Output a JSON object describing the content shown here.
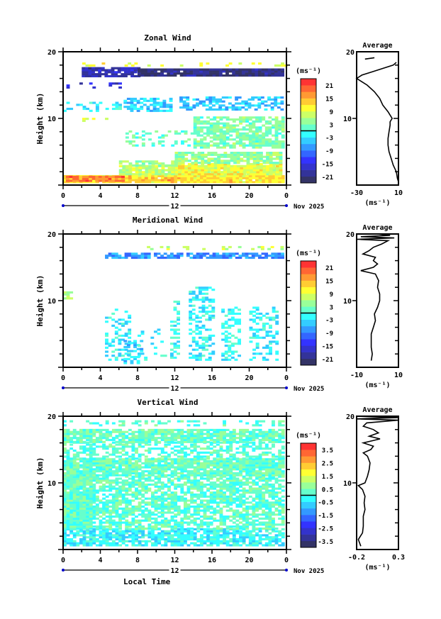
{
  "chart_data": [
    {
      "type": "heatmap",
      "title": "Zonal Wind",
      "ylabel": "Height (km)",
      "xlabel": "",
      "xlim": [
        0,
        24
      ],
      "ylim": [
        0,
        20
      ],
      "x_ticks": [
        "0",
        "4",
        "8",
        "12",
        "16",
        "20",
        "0"
      ],
      "y_ticks": [
        "20",
        "10"
      ],
      "date_label": "12",
      "month_label": "Nov 2025",
      "colorbar": {
        "unit": "(ms⁻¹)",
        "range": [
          -24,
          24
        ],
        "ticks": [
          "21",
          "15",
          "9",
          "3",
          "-3",
          "-9",
          "-15",
          "-21"
        ]
      },
      "patches": [
        [
          0,
          23.5,
          0.3,
          1.5,
          12,
          0.97
        ],
        [
          0.3,
          6.5,
          0.5,
          1.4,
          18,
          0.95
        ],
        [
          7,
          12,
          0.6,
          1.2,
          15,
          0.6
        ],
        [
          6,
          23.5,
          1.5,
          2.8,
          7,
          0.9
        ],
        [
          12,
          23.5,
          1.5,
          3.2,
          10,
          0.85
        ],
        [
          6,
          12,
          2.8,
          3.6,
          5,
          0.7
        ],
        [
          12,
          23.5,
          3.2,
          4.8,
          4,
          0.85
        ],
        [
          14,
          23.5,
          5.5,
          10.3,
          3,
          0.7
        ],
        [
          6,
          14,
          5.8,
          8,
          2,
          0.25
        ],
        [
          1,
          6,
          9.5,
          10.3,
          9,
          0.15
        ],
        [
          6.5,
          11.5,
          11.0,
          13.0,
          -4,
          0.6
        ],
        [
          12.5,
          23.5,
          11.2,
          13.3,
          -5,
          0.55
        ],
        [
          0,
          6,
          11,
          12.5,
          -2,
          0.3
        ],
        [
          2,
          8,
          16.2,
          17.5,
          -18,
          0.85
        ],
        [
          8,
          23.5,
          16.3,
          17.3,
          -21,
          0.95
        ],
        [
          0,
          6,
          14.5,
          15.3,
          -16,
          0.2
        ],
        [
          1,
          24,
          17.8,
          18.4,
          9,
          0.2
        ]
      ],
      "average": {
        "title": "Average",
        "unit": "(ms⁻¹)",
        "xlim": [
          -30,
          10
        ],
        "x_ticks": [
          "-30",
          "10"
        ],
        "y_ticks": [
          "20",
          "10"
        ],
        "profile": [
          [
            10,
            0.5
          ],
          [
            9,
            1
          ],
          [
            8,
            2
          ],
          [
            5,
            3
          ],
          [
            3,
            4
          ],
          [
            1,
            5
          ],
          [
            0,
            6
          ],
          [
            0,
            7
          ],
          [
            1,
            8
          ],
          [
            2,
            9
          ],
          [
            2,
            9.5
          ],
          [
            4,
            10
          ],
          [
            2,
            10.5
          ],
          [
            0,
            11
          ],
          [
            -5,
            12
          ],
          [
            -8,
            13
          ],
          [
            -13,
            14
          ],
          [
            -20,
            15
          ],
          [
            -25,
            15.5
          ],
          [
            -30,
            16
          ],
          [
            -25,
            16.5
          ],
          [
            -15,
            17
          ],
          [
            -5,
            17.5
          ],
          [
            5,
            18
          ],
          [
            8,
            18.4
          ]
        ],
        "extra_segment": [
          [
            -22,
            18.9
          ],
          [
            -13,
            19.1
          ]
        ]
      }
    },
    {
      "type": "heatmap",
      "title": "Meridional Wind",
      "ylabel": "Height (km)",
      "xlabel": "",
      "xlim": [
        0,
        24
      ],
      "ylim": [
        0,
        20
      ],
      "x_ticks": [
        "0",
        "4",
        "8",
        "12",
        "16",
        "20",
        "0"
      ],
      "y_ticks": [
        "20",
        "10"
      ],
      "date_label": "12",
      "month_label": "Nov 2025",
      "colorbar": {
        "unit": "(ms⁻¹)",
        "range": [
          -24,
          24
        ],
        "ticks": [
          "21",
          "15",
          "9",
          "3",
          "-3",
          "-9",
          "-15",
          "-21"
        ]
      },
      "patches": [
        [
          4.5,
          23.5,
          16.3,
          17.2,
          -8,
          0.8
        ],
        [
          9,
          24,
          17.6,
          18.1,
          8,
          0.3
        ],
        [
          0,
          1,
          10.2,
          11.2,
          6,
          0.8
        ],
        [
          4.5,
          7,
          1,
          8.5,
          -2,
          0.35
        ],
        [
          6.5,
          8.5,
          0.5,
          4,
          -4,
          0.45
        ],
        [
          11.5,
          12.5,
          1,
          10,
          -1,
          0.5
        ],
        [
          13.5,
          16,
          1,
          12,
          -2,
          0.45
        ],
        [
          17,
          19,
          1,
          9,
          -1,
          0.4
        ],
        [
          20,
          23,
          1,
          9,
          -2,
          0.35
        ],
        [
          8,
          11,
          1,
          6,
          -1,
          0.15
        ]
      ],
      "average": {
        "title": "Average",
        "unit": "(ms⁻¹)",
        "xlim": [
          -10,
          10
        ],
        "x_ticks": [
          "-10",
          "10"
        ],
        "y_ticks": [
          "20",
          "10"
        ],
        "profile": [
          [
            -3,
            1
          ],
          [
            -2.5,
            2
          ],
          [
            -3,
            3
          ],
          [
            -3,
            4
          ],
          [
            -3,
            5
          ],
          [
            -2,
            6
          ],
          [
            -1,
            7
          ],
          [
            -1.5,
            8
          ],
          [
            0,
            9
          ],
          [
            1,
            10
          ],
          [
            1,
            11
          ],
          [
            0,
            12
          ],
          [
            0.5,
            13
          ],
          [
            -1,
            14
          ],
          [
            -8,
            14.5
          ],
          [
            -2,
            15
          ],
          [
            0,
            15.5
          ],
          [
            -2,
            16
          ],
          [
            -1,
            16.5
          ],
          [
            -7,
            17
          ],
          [
            -4,
            17.5
          ],
          [
            -2,
            18
          ],
          [
            2,
            18.5
          ],
          [
            5,
            19
          ],
          [
            -10,
            19.2
          ],
          [
            8,
            19.4
          ],
          [
            -8,
            19.6
          ],
          [
            6,
            19.8
          ],
          [
            0,
            20
          ]
        ]
      }
    },
    {
      "type": "heatmap",
      "title": "Vertical Wind",
      "ylabel": "Height (km)",
      "xlabel": "Local Time",
      "xlim": [
        0,
        24
      ],
      "ylim": [
        0,
        20
      ],
      "x_ticks": [
        "0",
        "4",
        "8",
        "12",
        "16",
        "20",
        "0"
      ],
      "y_ticks": [
        "20",
        "10"
      ],
      "date_label": "12",
      "month_label": "Nov 2025",
      "colorbar": {
        "unit": "(ms⁻¹)",
        "range": [
          -4,
          4
        ],
        "ticks": [
          "3.5",
          "2.5",
          "1.5",
          "0.5",
          "-0.5",
          "-1.5",
          "-2.5",
          "-3.5"
        ]
      },
      "patches": [
        [
          0,
          23.5,
          0.5,
          3,
          -0.3,
          0.75
        ],
        [
          0,
          23.5,
          3,
          11,
          0.2,
          0.7
        ],
        [
          0,
          3,
          3,
          11,
          0.3,
          0.95
        ],
        [
          0,
          23.5,
          11,
          13.5,
          0.3,
          0.9
        ],
        [
          0,
          23.5,
          13.5,
          16,
          0.1,
          0.5
        ],
        [
          0,
          23.5,
          16,
          18,
          0.3,
          0.85
        ],
        [
          0,
          23.5,
          18.5,
          19.3,
          0.1,
          0.35
        ]
      ],
      "average": {
        "title": "Average",
        "unit": "(ms⁻¹)",
        "xlim": [
          -0.2,
          0.3
        ],
        "x_ticks": [
          "-0.2",
          "0.3"
        ],
        "y_ticks": [
          "20",
          "10"
        ],
        "profile": [
          [
            -0.15,
            0.5
          ],
          [
            -0.18,
            1.5
          ],
          [
            -0.13,
            2.5
          ],
          [
            -0.12,
            3.5
          ],
          [
            -0.12,
            5
          ],
          [
            -0.1,
            6
          ],
          [
            -0.11,
            7
          ],
          [
            -0.1,
            8
          ],
          [
            -0.13,
            9
          ],
          [
            -0.18,
            9.6
          ],
          [
            -0.1,
            10
          ],
          [
            -0.07,
            11
          ],
          [
            -0.05,
            12
          ],
          [
            -0.04,
            13
          ],
          [
            -0.07,
            14
          ],
          [
            -0.12,
            14.5
          ],
          [
            -0.03,
            15
          ],
          [
            0,
            15.5
          ],
          [
            -0.12,
            16
          ],
          [
            0.08,
            16.6
          ],
          [
            -0.05,
            17
          ],
          [
            0.06,
            17.5
          ],
          [
            0,
            18
          ],
          [
            -0.12,
            18.5
          ],
          [
            -0.08,
            19
          ],
          [
            0.3,
            19.4
          ],
          [
            -0.2,
            19.6
          ],
          [
            0.3,
            19.8
          ],
          [
            -0.2,
            20
          ]
        ]
      }
    }
  ],
  "palette": [
    "#333366",
    "#333399",
    "#3333cc",
    "#3333ff",
    "#3366ff",
    "#3399ff",
    "#33ccff",
    "#33ffff",
    "#66ffcc",
    "#99ff99",
    "#ccff66",
    "#ffff33",
    "#ffcc33",
    "#ff9933",
    "#ff6633",
    "#ff3333"
  ]
}
